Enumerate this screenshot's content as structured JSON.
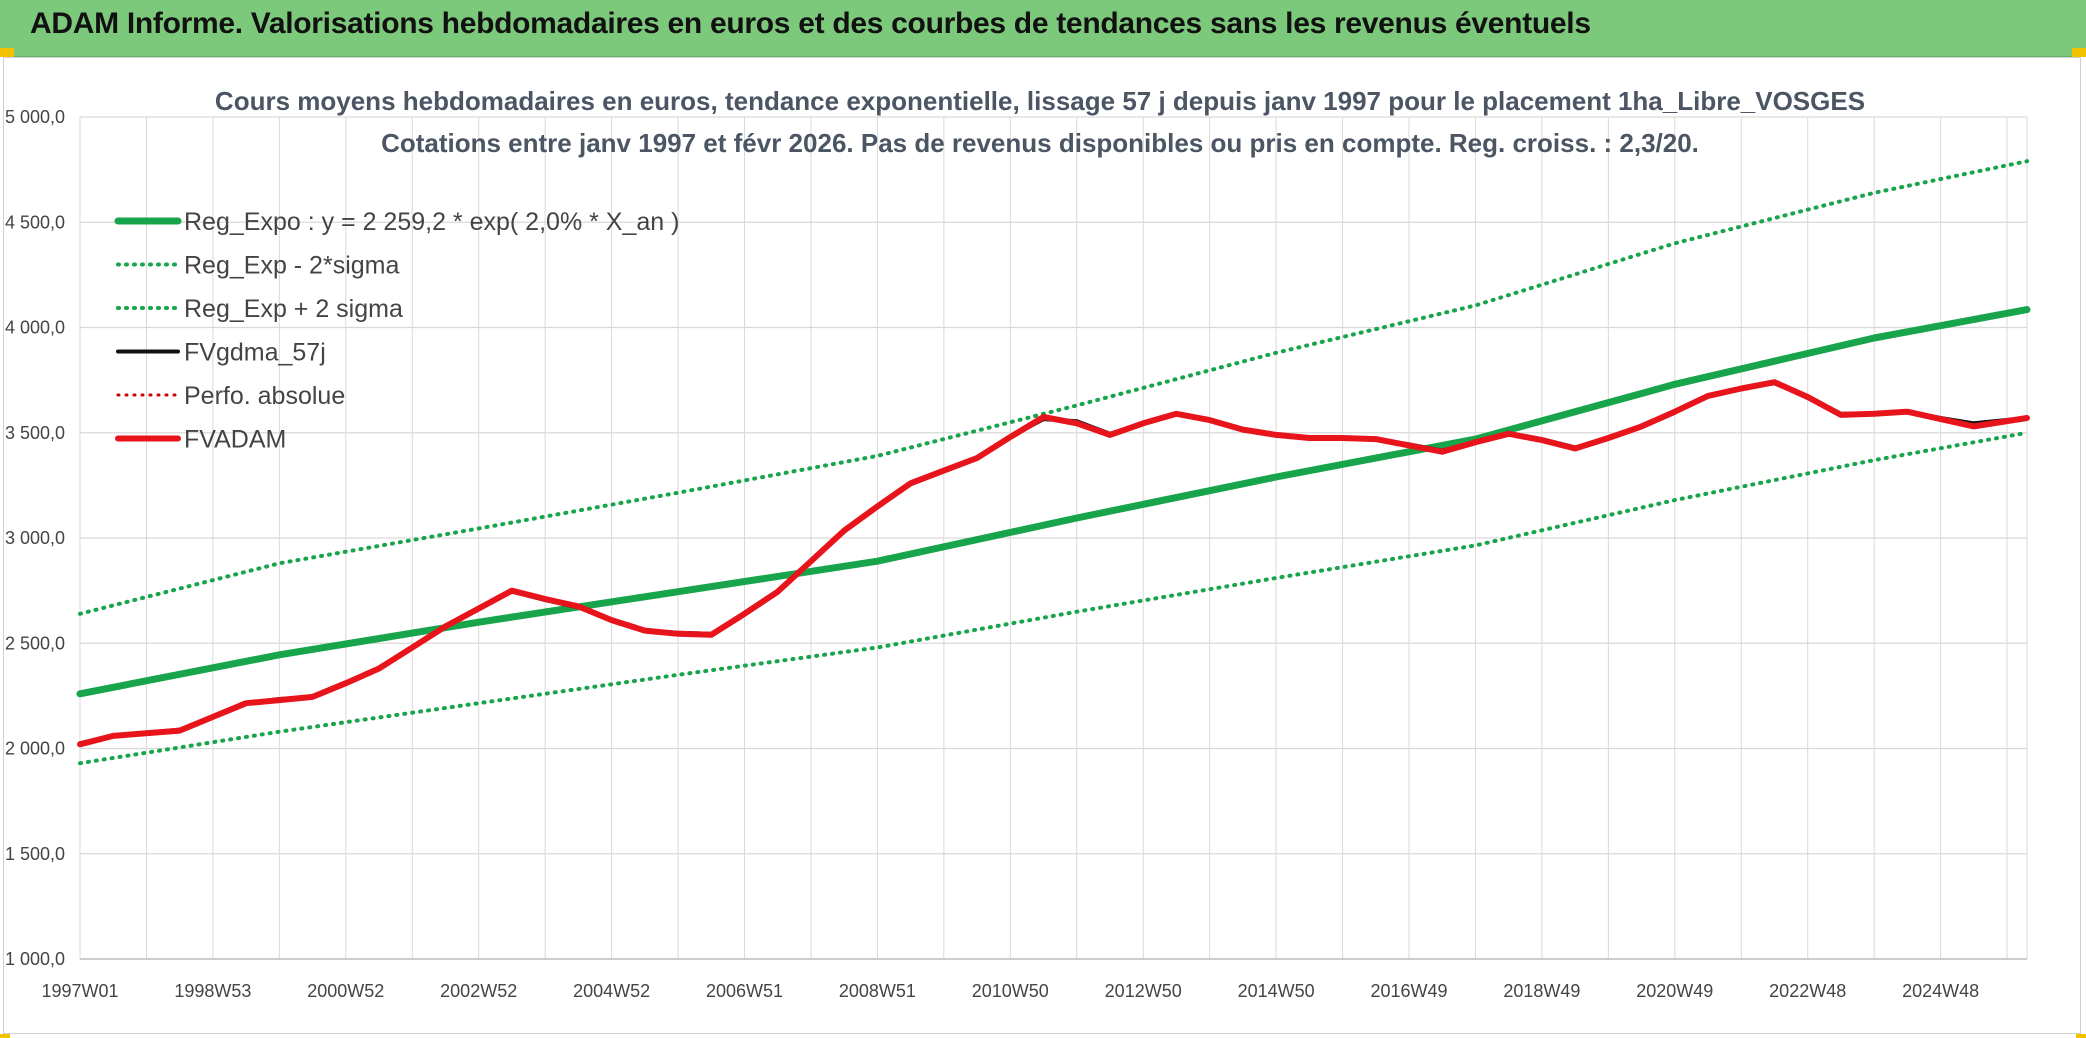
{
  "header": {
    "title": "ADAM Informe. Valorisations hebdomadaires en euros et des courbes de tendances sans les revenus éventuels"
  },
  "colors": {
    "header_bg": "#7dc97c",
    "trend_green": "#17a44a",
    "fv_red": "#e8141c",
    "gdma_black": "#111111",
    "perf_red": "#cc0000",
    "grid": "#d9d9d9"
  },
  "chart_data": {
    "type": "line",
    "title_lines": [
      "Cours moyens hebdomadaires en euros, tendance exponentielle, lissage 57 j depuis janv 1997 pour le placement 1ha_Libre_VOSGES",
      "Cotations entre janv 1997 et févr 2026. Pas de revenus disponibles ou pris en compte. Reg. croiss. : 2,3/20."
    ],
    "ylim": [
      1000,
      5000
    ],
    "y_ticks": [
      1000,
      1500,
      2000,
      2500,
      3000,
      3500,
      4000,
      4500,
      5000
    ],
    "y_tick_labels": [
      "1 000,0",
      "1 500,0",
      "2 000,0",
      "2 500,0",
      "3 000,0",
      "3 500,0",
      "4 000,0",
      "4 500,0",
      "5 000,0"
    ],
    "x_range": [
      1997.0,
      2026.3
    ],
    "x_ticks": [
      1997.0,
      1999.0,
      2001.0,
      2003.0,
      2005.0,
      2007.0,
      2009.0,
      2011.0,
      2013.0,
      2015.0,
      2017.0,
      2019.0,
      2021.0,
      2023.0,
      2025.0
    ],
    "x_tick_labels": [
      "1997W01",
      "1998W53",
      "2000W52",
      "2002W52",
      "2004W52",
      "2006W51",
      "2008W51",
      "2010W50",
      "2012W50",
      "2014W50",
      "2016W49",
      "2018W49",
      "2020W49",
      "2022W48",
      "2024W48"
    ],
    "grid": true,
    "legend_position": "top-left",
    "legend": [
      {
        "label": "Reg_Expo : y = 2 259,2 * exp( 2,0% *  X_an )",
        "color": "#17a44a",
        "style": "solid",
        "width": 7
      },
      {
        "label": "Reg_Exp - 2*sigma",
        "color": "#17a44a",
        "style": "dotted",
        "width": 4
      },
      {
        "label": "Reg_Exp + 2 sigma",
        "color": "#17a44a",
        "style": "dotted",
        "width": 4
      },
      {
        "label": "FVgdma_57j",
        "color": "#111111",
        "style": "solid",
        "width": 4
      },
      {
        "label": "Perfo. absolue",
        "color": "#cc0000",
        "style": "dotted",
        "width": 3
      },
      {
        "label": "FVADAM",
        "color": "#e8141c",
        "style": "solid",
        "width": 6
      }
    ],
    "series": [
      {
        "name": "Reg_Expo : y = 2 259,2 * exp( 2,0% *  X_an )",
        "x": [
          1997.0,
          2000.0,
          2003.0,
          2006.0,
          2009.0,
          2012.0,
          2015.0,
          2018.0,
          2021.0,
          2024.0,
          2026.3
        ],
        "values": [
          2260,
          2445,
          2600,
          2745,
          2890,
          3095,
          3290,
          3470,
          3730,
          3950,
          4085
        ]
      },
      {
        "name": "Reg_Exp - 2*sigma",
        "x": [
          1997.0,
          2000.0,
          2003.0,
          2006.0,
          2009.0,
          2012.0,
          2015.0,
          2018.0,
          2021.0,
          2024.0,
          2026.3
        ],
        "values": [
          1930,
          2080,
          2215,
          2350,
          2480,
          2650,
          2810,
          2965,
          3180,
          3370,
          3500
        ]
      },
      {
        "name": "Reg_Exp + 2 sigma",
        "x": [
          1997.0,
          2000.0,
          2003.0,
          2006.0,
          2009.0,
          2012.0,
          2015.0,
          2018.0,
          2021.0,
          2024.0,
          2026.3
        ],
        "values": [
          2640,
          2880,
          3045,
          3215,
          3390,
          3630,
          3880,
          4105,
          4400,
          4640,
          4790
        ]
      },
      {
        "name": "FVgdma_57j",
        "x": [
          1997.0,
          1997.5,
          1998.5,
          1999.0,
          1999.5,
          2000.0,
          2000.5,
          2001.0,
          2001.5,
          2002.0,
          2002.5,
          2003.0,
          2003.5,
          2004.0,
          2004.5,
          2005.0,
          2005.5,
          2006.0,
          2006.5,
          2007.0,
          2007.5,
          2008.0,
          2008.5,
          2009.0,
          2009.5,
          2010.0,
          2010.5,
          2011.0,
          2011.5,
          2012.0,
          2012.5,
          2013.0,
          2013.5,
          2014.0,
          2014.5,
          2015.0,
          2015.5,
          2016.0,
          2016.5,
          2017.0,
          2017.5,
          2018.0,
          2018.5,
          2019.0,
          2019.5,
          2020.0,
          2020.5,
          2021.0,
          2021.5,
          2022.0,
          2022.5,
          2023.0,
          2023.5,
          2024.0,
          2024.5,
          2025.0,
          2025.5,
          2026.3
        ],
        "values": [
          2025,
          2060,
          2090,
          2150,
          2215,
          2235,
          2245,
          2310,
          2380,
          2480,
          2580,
          2665,
          2745,
          2705,
          2670,
          2610,
          2560,
          2550,
          2545,
          2640,
          2745,
          2890,
          3030,
          3150,
          3260,
          3320,
          3380,
          3480,
          3565,
          3555,
          3495,
          3545,
          3590,
          3560,
          3515,
          3490,
          3475,
          3475,
          3470,
          3445,
          3415,
          3455,
          3495,
          3470,
          3430,
          3475,
          3530,
          3600,
          3675,
          3710,
          3735,
          3670,
          3590,
          3590,
          3600,
          3570,
          3545,
          3570
        ]
      },
      {
        "name": "FVADAM",
        "x": [
          1997.0,
          1997.5,
          1998.5,
          1999.0,
          1999.5,
          2000.0,
          2000.5,
          2001.0,
          2001.5,
          2002.0,
          2002.5,
          2003.0,
          2003.5,
          2004.0,
          2004.5,
          2005.0,
          2005.5,
          2006.0,
          2006.5,
          2007.0,
          2007.5,
          2008.0,
          2008.5,
          2009.0,
          2009.5,
          2010.0,
          2010.5,
          2011.0,
          2011.5,
          2012.0,
          2012.5,
          2013.0,
          2013.5,
          2014.0,
          2014.5,
          2015.0,
          2015.5,
          2016.0,
          2016.5,
          2017.0,
          2017.5,
          2018.0,
          2018.5,
          2019.0,
          2019.5,
          2020.0,
          2020.5,
          2021.0,
          2021.5,
          2022.0,
          2022.5,
          2023.0,
          2023.5,
          2024.0,
          2024.5,
          2025.0,
          2025.5,
          2026.3
        ],
        "values": [
          2020,
          2060,
          2085,
          2150,
          2215,
          2230,
          2245,
          2310,
          2380,
          2480,
          2580,
          2665,
          2750,
          2710,
          2675,
          2610,
          2560,
          2545,
          2540,
          2640,
          2745,
          2890,
          3035,
          3150,
          3260,
          3320,
          3380,
          3480,
          3575,
          3545,
          3490,
          3545,
          3590,
          3560,
          3515,
          3490,
          3475,
          3475,
          3470,
          3440,
          3410,
          3455,
          3495,
          3465,
          3425,
          3475,
          3530,
          3600,
          3675,
          3710,
          3740,
          3670,
          3585,
          3590,
          3600,
          3565,
          3530,
          3570
        ]
      }
    ]
  }
}
